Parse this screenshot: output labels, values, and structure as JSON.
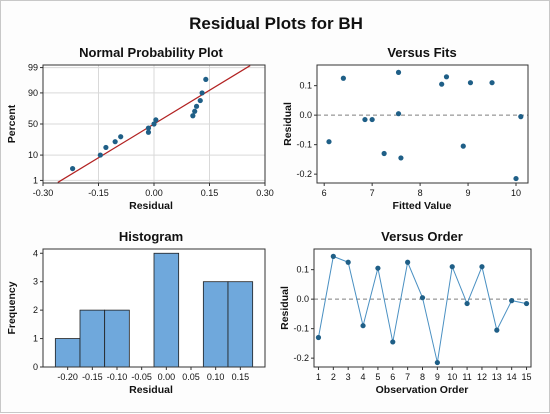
{
  "title": "Residual Plots for BH",
  "colors": {
    "point": "#1f5f87",
    "bar": "#6fa8dc",
    "fitline": "#b22222",
    "refline": "#7f7f7f",
    "orderline": "#4a90c2"
  },
  "chart_data": [
    {
      "type": "scatter",
      "title": "Normal Probability Plot",
      "xlabel": "Residual",
      "ylabel": "Percent",
      "xlim": [
        -0.3,
        0.3
      ],
      "xticks": [
        "-0.30",
        "-0.15",
        "0.00",
        "0.15",
        "0.30"
      ],
      "xtick_values": [
        -0.3,
        -0.15,
        0,
        0.15,
        0.3
      ],
      "yscale": "normal-probability",
      "yticks": [
        "1",
        "10",
        "50",
        "90",
        "99"
      ],
      "ytick_values": [
        1,
        10,
        50,
        90,
        99
      ],
      "grid": true,
      "x": [
        -0.22,
        -0.145,
        -0.13,
        -0.105,
        -0.09,
        -0.015,
        -0.015,
        0.0,
        0.005,
        0.105,
        0.11,
        0.115,
        0.125,
        0.13,
        0.14
      ],
      "y": [
        3.3,
        10,
        16.7,
        23.3,
        30,
        36.7,
        43.3,
        50,
        56.7,
        63.3,
        70,
        76.7,
        83.3,
        90,
        96.7
      ],
      "fit_line": {
        "x": [
          -0.26,
          0.26
        ],
        "y": [
          0.8,
          99.2
        ]
      }
    },
    {
      "type": "scatter",
      "title": "Versus Fits",
      "xlabel": "Fitted Value",
      "ylabel": "Residual",
      "xlim": [
        5.85,
        10.25
      ],
      "ylim": [
        -0.23,
        0.17
      ],
      "xticks": [
        "6",
        "7",
        "8",
        "9",
        "10"
      ],
      "xtick_values": [
        6,
        7,
        8,
        9,
        10
      ],
      "yticks": [
        "-0.2",
        "-0.1",
        "0.0",
        "0.1"
      ],
      "ytick_values": [
        -0.2,
        -0.1,
        0,
        0.1
      ],
      "reference_line": 0,
      "x": [
        6.1,
        6.4,
        6.85,
        7.0,
        7.25,
        7.55,
        7.55,
        7.6,
        8.45,
        8.55,
        8.9,
        9.05,
        9.5,
        10.0,
        10.1
      ],
      "y": [
        -0.09,
        0.125,
        -0.015,
        -0.015,
        -0.13,
        0.145,
        0.005,
        -0.145,
        0.105,
        0.13,
        -0.105,
        0.11,
        0.11,
        -0.215,
        -0.005
      ]
    },
    {
      "type": "bar",
      "title": "Histogram",
      "xlabel": "Residual",
      "ylabel": "Frequency",
      "xlim": [
        -0.25,
        0.2
      ],
      "ylim": [
        0,
        4.15
      ],
      "xticks": [
        "-0.20",
        "-0.15",
        "-0.10",
        "-0.05",
        "0.00",
        "0.05",
        "0.10",
        "0.15"
      ],
      "xtick_values": [
        -0.2,
        -0.15,
        -0.1,
        -0.05,
        0,
        0.05,
        0.1,
        0.15
      ],
      "yticks": [
        "0",
        "1",
        "2",
        "3",
        "4"
      ],
      "ytick_values": [
        0,
        1,
        2,
        3,
        4
      ],
      "bins": [
        -0.2,
        -0.15,
        -0.1,
        -0.05,
        0.0,
        0.05,
        0.1,
        0.15
      ],
      "values": [
        1,
        2,
        2,
        0,
        4,
        0,
        3,
        3
      ]
    },
    {
      "type": "line",
      "title": "Versus Order",
      "xlabel": "Observation Order",
      "ylabel": "Residual",
      "xlim": [
        0.7,
        15.3
      ],
      "ylim": [
        -0.23,
        0.17
      ],
      "xticks": [
        "1",
        "2",
        "3",
        "4",
        "5",
        "6",
        "7",
        "8",
        "9",
        "10",
        "11",
        "12",
        "13",
        "14",
        "15"
      ],
      "xtick_values": [
        1,
        2,
        3,
        4,
        5,
        6,
        7,
        8,
        9,
        10,
        11,
        12,
        13,
        14,
        15
      ],
      "yticks": [
        "-0.2",
        "-0.1",
        "0.0",
        "0.1"
      ],
      "ytick_values": [
        -0.2,
        -0.1,
        0,
        0.1
      ],
      "reference_line": 0,
      "x": [
        1,
        2,
        3,
        4,
        5,
        6,
        7,
        8,
        9,
        10,
        11,
        12,
        13,
        14,
        15
      ],
      "y": [
        -0.13,
        0.145,
        0.125,
        -0.09,
        0.105,
        -0.145,
        0.125,
        0.005,
        -0.215,
        0.11,
        -0.015,
        0.11,
        -0.105,
        -0.005,
        -0.015
      ]
    }
  ]
}
